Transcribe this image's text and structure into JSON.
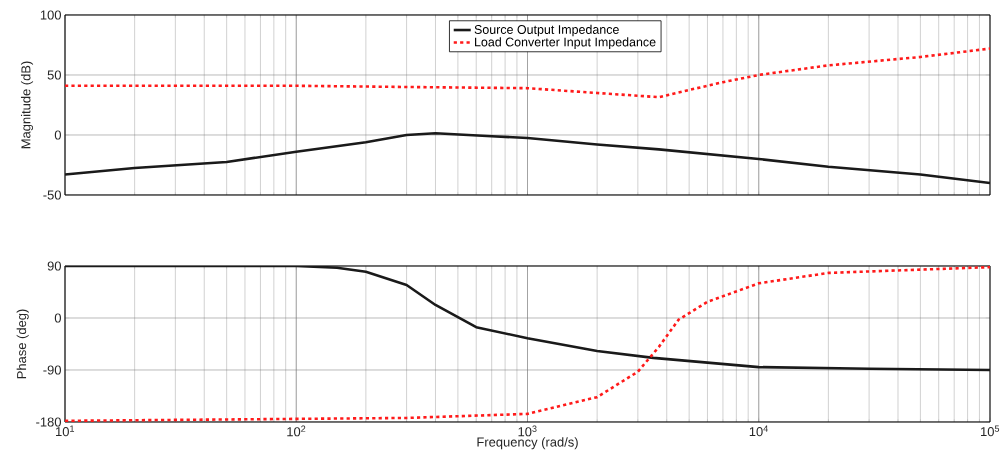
{
  "chart_data": [
    {
      "type": "line",
      "ylabel": "Magnitude (dB)",
      "log": "x",
      "grid": true,
      "legend": "top",
      "tick_labels": "y",
      "xlim": [
        10,
        100000
      ],
      "xticks": [
        {
          "value": 10,
          "label": null
        },
        {
          "value": 100,
          "label": null
        },
        {
          "value": 1000,
          "label": null
        },
        {
          "value": 10000,
          "label": null
        },
        {
          "value": 100000,
          "label": null
        }
      ],
      "ylim": [
        -50,
        100
      ],
      "yticks": [
        -50,
        0,
        50,
        100
      ],
      "series": [
        {
          "name": "Source Output Impedance",
          "color": "#1a1a1a",
          "line_style": "solid",
          "x": [
            10,
            20,
            50,
            100,
            200,
            300,
            400,
            700,
            1000,
            2000,
            3700,
            10000,
            20000,
            50000,
            100000
          ],
          "values": [
            -33,
            -27.5,
            -22.5,
            -14,
            -6,
            0,
            1.5,
            -1,
            -2.5,
            -8,
            -12,
            -20,
            -26.5,
            -33,
            -40
          ]
        },
        {
          "name": "Load Converter Input Impedance",
          "color": "#ff1a1a",
          "line_style": "dotted",
          "x": [
            10,
            100,
            300,
            1000,
            2000,
            3700,
            5000,
            7000,
            10000,
            20000,
            50000,
            100000
          ],
          "values": [
            41,
            41,
            40,
            39,
            35,
            31.5,
            37.5,
            44,
            50,
            58,
            65,
            72
          ]
        }
      ]
    },
    {
      "type": "line",
      "ylabel": "Phase (deg)",
      "xlabel": "Frequency  (rad/s)",
      "log": "x",
      "grid": true,
      "xlim": [
        10,
        100000
      ],
      "xticks": [
        {
          "value": 10,
          "label": "10$^{1}$"
        },
        {
          "value": 100,
          "label": "10$^{2}$"
        },
        {
          "value": 1000,
          "label": "10$^{3}$"
        },
        {
          "value": 10000,
          "label": "10$^{4}$"
        },
        {
          "value": 100000,
          "label": "10$^{5}$"
        }
      ],
      "ylim": [
        -180,
        90
      ],
      "yticks": [
        -180,
        -90,
        0,
        90
      ],
      "series": [
        {
          "color": "#1a1a1a",
          "line_style": "solid",
          "x": [
            10,
            100,
            150,
            200,
            300,
            400,
            600,
            1000,
            2000,
            3500,
            10000,
            30000,
            100000
          ],
          "values": [
            90,
            90,
            87,
            80,
            57,
            22.5,
            -16,
            -35,
            -57,
            -69,
            -85,
            -88,
            -90
          ]
        },
        {
          "color": "#ff1a1a",
          "line_style": "dotted",
          "x": [
            10,
            300,
            1000,
            2000,
            3000,
            3700,
            4500,
            6000,
            10000,
            20000,
            100000
          ],
          "values": [
            -178,
            -173,
            -166,
            -137,
            -93,
            -50,
            -3,
            28,
            60,
            78,
            88
          ]
        }
      ]
    }
  ]
}
